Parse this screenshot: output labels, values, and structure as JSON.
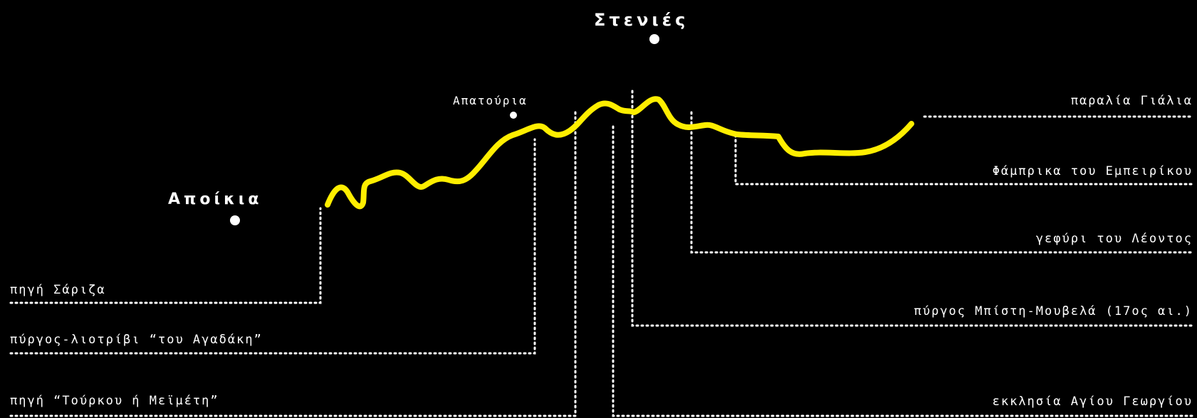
{
  "colors": {
    "background": "#000000",
    "route": "#ffee00",
    "text": "#ffffff"
  },
  "villages": {
    "stenies": "Στενιές",
    "apoikia": "Αποίκια",
    "apatouria": "Απατούρια"
  },
  "points_left": {
    "p1": "πηγή Σάριζα",
    "p2": "πύργος-λιοτρίβι “του Αγαδάκη”",
    "p3": "πηγή “Τούρκου ή Μεϊμέτη”"
  },
  "points_right": {
    "p1": "παραλία Γιάλια",
    "p2": "Φάμπρικα του Εμπειρίκου",
    "p3": "γεφύρι του Λέοντος",
    "p4": "πύργος Μπίστη-Μουβελά (17ος αι.)",
    "p5": "εκκλησία Αγίου Γεωργίου"
  }
}
